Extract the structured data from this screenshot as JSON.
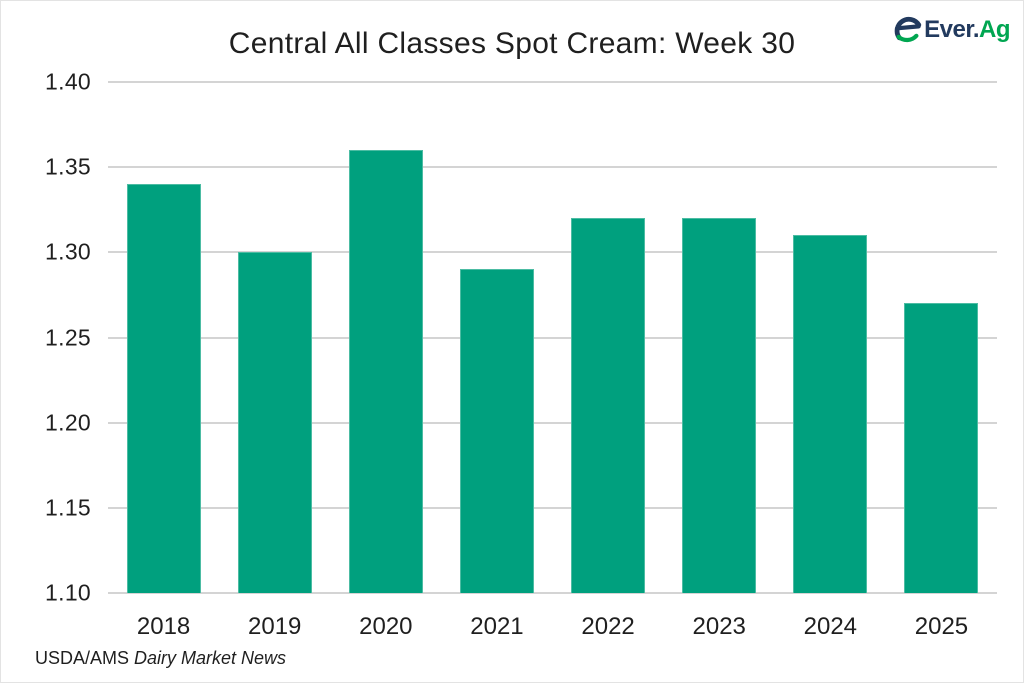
{
  "header": {
    "title": "Central All Classes Spot Cream: Week 30"
  },
  "logo": {
    "brand_primary": "Ever.",
    "brand_accent": "Ag",
    "navy": "#223a5e",
    "green": "#00a651"
  },
  "chart_data": {
    "type": "bar",
    "title": "Central All Classes Spot Cream: Week 30",
    "categories": [
      "2018",
      "2019",
      "2020",
      "2021",
      "2022",
      "2023",
      "2024",
      "2025"
    ],
    "values": [
      1.34,
      1.3,
      1.36,
      1.29,
      1.32,
      1.32,
      1.31,
      1.27
    ],
    "xlabel": "",
    "ylabel": "",
    "ylim": [
      1.1,
      1.4
    ],
    "yticks": [
      1.4,
      1.35,
      1.3,
      1.25,
      1.2,
      1.15,
      1.1
    ],
    "ytick_labels": [
      "1.40",
      "1.35",
      "1.30",
      "1.25",
      "1.20",
      "1.15",
      "1.10"
    ],
    "grid": true,
    "legend": "none",
    "bar_color": "#00a07e",
    "bar_edge_color": "#4cbca3",
    "gridline_color": "#d4d4d4",
    "axis_text_color": "#1f1f1f"
  },
  "footer": {
    "source_prefix": "USDA/AMS ",
    "source_name": "Dairy Market News"
  }
}
